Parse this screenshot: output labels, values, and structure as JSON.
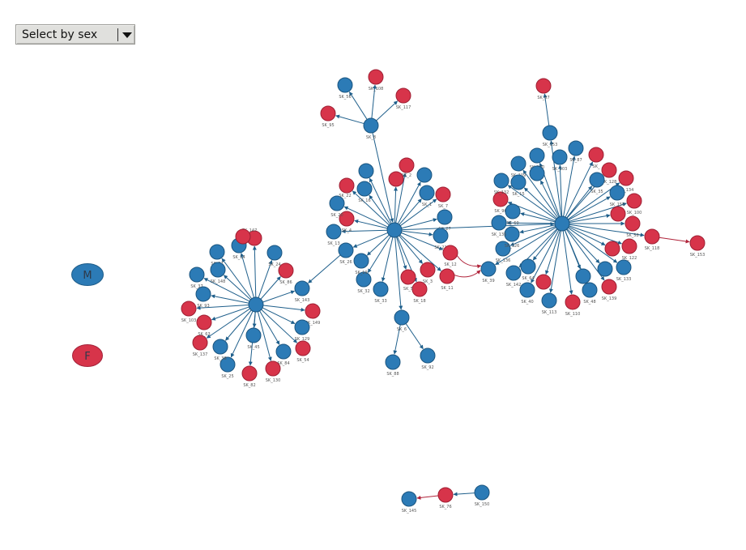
{
  "filter": {
    "label": "Select by sex"
  },
  "legend": [
    {
      "key": "M",
      "label": "M",
      "color": "#2c7bb6"
    },
    {
      "key": "F",
      "label": "F",
      "color": "#d7344a"
    }
  ],
  "colors": {
    "M": "#2c7bb6",
    "F": "#d7344a",
    "edge_M": "#1f5f8b",
    "edge_F": "#b0233a"
  },
  "nodes": [
    {
      "id": "L1",
      "label": "",
      "sex": "M"
    },
    {
      "id": "SK_97",
      "label": "SK_97",
      "sex": "M"
    },
    {
      "id": "SK_24",
      "label": "SK_24",
      "sex": "M"
    },
    {
      "id": "SK_86",
      "label": "SK_86",
      "sex": "F"
    },
    {
      "id": "SK_143",
      "label": "SK_143",
      "sex": "M"
    },
    {
      "id": "SK_149",
      "label": "SK_149",
      "sex": "F"
    },
    {
      "id": "SK_129",
      "label": "SK_129",
      "sex": "M"
    },
    {
      "id": "SK_54",
      "label": "SK_54",
      "sex": "F"
    },
    {
      "id": "SK_84",
      "label": "SK_84",
      "sex": "M"
    },
    {
      "id": "SK_130",
      "label": "SK_130",
      "sex": "F"
    },
    {
      "id": "SK_45",
      "label": "SK_45",
      "sex": "M"
    },
    {
      "id": "SK_82",
      "label": "SK_82",
      "sex": "F"
    },
    {
      "id": "SK_25",
      "label": "SK_25",
      "sex": "M"
    },
    {
      "id": "SK_38",
      "label": "SK_38",
      "sex": "M"
    },
    {
      "id": "SK_137",
      "label": "SK_137",
      "sex": "F"
    },
    {
      "id": "SK_63",
      "label": "SK_63",
      "sex": "F"
    },
    {
      "id": "SK_103",
      "label": "SK_103",
      "sex": "F"
    },
    {
      "id": "SK_93",
      "label": "SK_93",
      "sex": "M"
    },
    {
      "id": "SK_37",
      "label": "SK_37",
      "sex": "M"
    },
    {
      "id": "SK_148",
      "label": "SK_148",
      "sex": "M"
    },
    {
      "id": "SK_14",
      "label": "SK_14",
      "sex": "M"
    },
    {
      "id": "SK_147",
      "label": "SK_147",
      "sex": "F"
    },
    {
      "id": "SK_2a",
      "label": "",
      "sex": "F"
    },
    {
      "id": "H2",
      "label": "",
      "sex": "M"
    },
    {
      "id": "SK_26",
      "label": "SK_26",
      "sex": "M"
    },
    {
      "id": "SK_13",
      "label": "SK_13",
      "sex": "M"
    },
    {
      "id": "SK_4",
      "label": "SK_4",
      "sex": "F"
    },
    {
      "id": "SK_20",
      "label": "SK_20",
      "sex": "M"
    },
    {
      "id": "SK_22",
      "label": "SK_22",
      "sex": "F"
    },
    {
      "id": "SK_16",
      "label": "SK_16",
      "sex": "M"
    },
    {
      "id": "SK_160",
      "label": "",
      "sex": "M"
    },
    {
      "id": "SK_2",
      "label": "SK_2",
      "sex": "F"
    },
    {
      "id": "SK_2b",
      "label": "",
      "sex": "F"
    },
    {
      "id": "SK_43",
      "label": "",
      "sex": "M"
    },
    {
      "id": "SK_1",
      "label": "SK_1",
      "sex": "M"
    },
    {
      "id": "SK_7",
      "label": "SK_7",
      "sex": "F"
    },
    {
      "id": "SK_27",
      "label": "SK_27",
      "sex": "M"
    },
    {
      "id": "SK_21",
      "label": "SK_21",
      "sex": "M"
    },
    {
      "id": "SK_12",
      "label": "SK_12",
      "sex": "F"
    },
    {
      "id": "SK_11",
      "label": "SK_11",
      "sex": "F"
    },
    {
      "id": "SK_3",
      "label": "SK_3",
      "sex": "F"
    },
    {
      "id": "SK_18",
      "label": "SK_18",
      "sex": "F"
    },
    {
      "id": "SK_5",
      "label": "SK_5",
      "sex": "F"
    },
    {
      "id": "SK_33",
      "label": "SK_33",
      "sex": "M"
    },
    {
      "id": "SK_32",
      "label": "SK_32",
      "sex": "M"
    },
    {
      "id": "SK_19",
      "label": "SK_19",
      "sex": "M"
    },
    {
      "id": "SK_6",
      "label": "SK_6",
      "sex": "M"
    },
    {
      "id": "SK_88",
      "label": "SK_88",
      "sex": "M"
    },
    {
      "id": "SK_92",
      "label": "SK_92",
      "sex": "M"
    },
    {
      "id": "SK_8",
      "label": "SK_8",
      "sex": "M"
    },
    {
      "id": "SK_56",
      "label": "SK_56",
      "sex": "M"
    },
    {
      "id": "SK_108",
      "label": "SK_108",
      "sex": "F"
    },
    {
      "id": "SK_117",
      "label": "SK_117",
      "sex": "F"
    },
    {
      "id": "SK_95",
      "label": "SK_95",
      "sex": "F"
    },
    {
      "id": "SK_39",
      "label": "SK_39",
      "sex": "M"
    },
    {
      "id": "H3",
      "label": "",
      "sex": "M"
    },
    {
      "id": "SK_67",
      "label": "SK_67",
      "sex": "F"
    },
    {
      "id": "SK_153a",
      "label": "SK_153",
      "sex": "M"
    },
    {
      "id": "SK_140",
      "label": "SK_140",
      "sex": "M"
    },
    {
      "id": "SK_109",
      "label": "SK_109",
      "sex": "M"
    },
    {
      "id": "SK_103b",
      "label": "SK_103",
      "sex": "M"
    },
    {
      "id": "SK_P1",
      "label": "",
      "sex": "M"
    },
    {
      "id": "SK_87",
      "label": "SK_87",
      "sex": "M"
    },
    {
      "id": "SK_R1",
      "label": "SK_",
      "sex": "F"
    },
    {
      "id": "SK_128",
      "label": "SK_128",
      "sex": "F"
    },
    {
      "id": "SK_134",
      "label": "SK_134",
      "sex": "F"
    },
    {
      "id": "SK_35",
      "label": "SK_35",
      "sex": "M"
    },
    {
      "id": "SK_155",
      "label": "SK_155",
      "sex": "M"
    },
    {
      "id": "SK_100",
      "label": "SK_100",
      "sex": "F"
    },
    {
      "id": "SK_48a",
      "label": "",
      "sex": "F"
    },
    {
      "id": "SK_58",
      "label": "SK_58",
      "sex": "F"
    },
    {
      "id": "SK_118",
      "label": "SK_118",
      "sex": "F"
    },
    {
      "id": "SK_153",
      "label": "SK_153",
      "sex": "F"
    },
    {
      "id": "SK_122",
      "label": "SK_122",
      "sex": "F"
    },
    {
      "id": "SK_110a",
      "label": "",
      "sex": "F"
    },
    {
      "id": "SK_133",
      "label": "SK_133",
      "sex": "M"
    },
    {
      "id": "SK_139",
      "label": "SK_139",
      "sex": "F"
    },
    {
      "id": "SK_40b",
      "label": "",
      "sex": "M"
    },
    {
      "id": "SK_48",
      "label": "SK_48",
      "sex": "M"
    },
    {
      "id": "SK_110",
      "label": "SK_110",
      "sex": "F"
    },
    {
      "id": "SK_113",
      "label": "SK_113",
      "sex": "M"
    },
    {
      "id": "SK_17",
      "label": "",
      "sex": "M"
    },
    {
      "id": "SK_F1",
      "label": "",
      "sex": "F"
    },
    {
      "id": "SK_40",
      "label": "SK_40",
      "sex": "M"
    },
    {
      "id": "SK_142",
      "label": "SK_142",
      "sex": "M"
    },
    {
      "id": "SK_64",
      "label": "SK_64",
      "sex": "M"
    },
    {
      "id": "SK_136",
      "label": "SK_136",
      "sex": "M"
    },
    {
      "id": "SK_126",
      "label": "SK_126",
      "sex": "M"
    },
    {
      "id": "SK_135",
      "label": "SK_135",
      "sex": "M"
    },
    {
      "id": "SK_96",
      "label": "SK_96",
      "sex": "F"
    },
    {
      "id": "SK_132",
      "label": "SK_132",
      "sex": "M"
    },
    {
      "id": "SK_15",
      "label": "SK_15",
      "sex": "M"
    },
    {
      "id": "SK_60",
      "label": "SK_60",
      "sex": "M"
    },
    {
      "id": "SK_145",
      "label": "SK_145",
      "sex": "M"
    },
    {
      "id": "SK_76",
      "label": "SK_76",
      "sex": "F"
    },
    {
      "id": "SK_150",
      "label": "SK_150",
      "sex": "M"
    }
  ],
  "edges": [
    [
      "L1",
      "SK_97"
    ],
    [
      "L1",
      "SK_24"
    ],
    [
      "L1",
      "SK_86"
    ],
    [
      "L1",
      "SK_143"
    ],
    [
      "L1",
      "SK_149"
    ],
    [
      "L1",
      "SK_129"
    ],
    [
      "L1",
      "SK_54"
    ],
    [
      "L1",
      "SK_84"
    ],
    [
      "L1",
      "SK_130"
    ],
    [
      "L1",
      "SK_45"
    ],
    [
      "L1",
      "SK_82"
    ],
    [
      "L1",
      "SK_25"
    ],
    [
      "L1",
      "SK_38"
    ],
    [
      "L1",
      "SK_137"
    ],
    [
      "L1",
      "SK_63"
    ],
    [
      "L1",
      "SK_103"
    ],
    [
      "L1",
      "SK_93"
    ],
    [
      "L1",
      "SK_37"
    ],
    [
      "L1",
      "SK_148"
    ],
    [
      "L1",
      "SK_14"
    ],
    [
      "L1",
      "SK_147"
    ],
    [
      "SK_147",
      "SK_2a"
    ],
    [
      "H2",
      "SK_26"
    ],
    [
      "H2",
      "SK_13"
    ],
    [
      "H2",
      "SK_4"
    ],
    [
      "H2",
      "SK_20"
    ],
    [
      "H2",
      "SK_22"
    ],
    [
      "H2",
      "SK_16"
    ],
    [
      "H2",
      "SK_160"
    ],
    [
      "H2",
      "SK_2"
    ],
    [
      "H2",
      "SK_2b"
    ],
    [
      "H2",
      "SK_43"
    ],
    [
      "H2",
      "SK_1"
    ],
    [
      "H2",
      "SK_7"
    ],
    [
      "H2",
      "SK_27"
    ],
    [
      "H2",
      "SK_21"
    ],
    [
      "H2",
      "SK_12"
    ],
    [
      "H2",
      "SK_11"
    ],
    [
      "H2",
      "SK_3"
    ],
    [
      "H2",
      "SK_18"
    ],
    [
      "H2",
      "SK_5"
    ],
    [
      "H2",
      "SK_33"
    ],
    [
      "H2",
      "SK_32"
    ],
    [
      "H2",
      "SK_19"
    ],
    [
      "H2",
      "SK_6"
    ],
    [
      "SK_6",
      "SK_88"
    ],
    [
      "SK_6",
      "SK_92"
    ],
    [
      "SK_8",
      "H2"
    ],
    [
      "SK_8",
      "SK_56"
    ],
    [
      "SK_8",
      "SK_108"
    ],
    [
      "SK_8",
      "SK_117"
    ],
    [
      "SK_8",
      "SK_95"
    ],
    [
      "SK_26",
      "SK_143"
    ],
    [
      "SK_12",
      "SK_39"
    ],
    [
      "SK_11",
      "SK_39"
    ],
    [
      "H2",
      "H3"
    ],
    [
      "SK_153a",
      "SK_67"
    ],
    [
      "H3",
      "SK_153a"
    ],
    [
      "H3",
      "SK_140"
    ],
    [
      "H3",
      "SK_109"
    ],
    [
      "H3",
      "SK_103b"
    ],
    [
      "H3",
      "SK_P1"
    ],
    [
      "H3",
      "SK_87"
    ],
    [
      "H3",
      "SK_R1"
    ],
    [
      "H3",
      "SK_128"
    ],
    [
      "H3",
      "SK_134"
    ],
    [
      "H3",
      "SK_35"
    ],
    [
      "H3",
      "SK_155"
    ],
    [
      "H3",
      "SK_100"
    ],
    [
      "H3",
      "SK_48a"
    ],
    [
      "H3",
      "SK_58"
    ],
    [
      "H3",
      "SK_118"
    ],
    [
      "SK_118",
      "SK_153"
    ],
    [
      "H3",
      "SK_122"
    ],
    [
      "H3",
      "SK_110a"
    ],
    [
      "H3",
      "SK_133"
    ],
    [
      "H3",
      "SK_139"
    ],
    [
      "H3",
      "SK_40b"
    ],
    [
      "H3",
      "SK_48"
    ],
    [
      "H3",
      "SK_110"
    ],
    [
      "H3",
      "SK_113"
    ],
    [
      "H3",
      "SK_17"
    ],
    [
      "H3",
      "SK_F1"
    ],
    [
      "H3",
      "SK_40"
    ],
    [
      "H3",
      "SK_142"
    ],
    [
      "H3",
      "SK_64"
    ],
    [
      "H3",
      "SK_136"
    ],
    [
      "H3",
      "SK_126"
    ],
    [
      "H3",
      "SK_135"
    ],
    [
      "H3",
      "SK_96"
    ],
    [
      "H3",
      "SK_132"
    ],
    [
      "H3",
      "SK_15"
    ],
    [
      "H3",
      "SK_60"
    ],
    [
      "H3",
      "SK_39"
    ],
    [
      "SK_76",
      "SK_145"
    ],
    [
      "SK_150",
      "SK_76"
    ]
  ]
}
